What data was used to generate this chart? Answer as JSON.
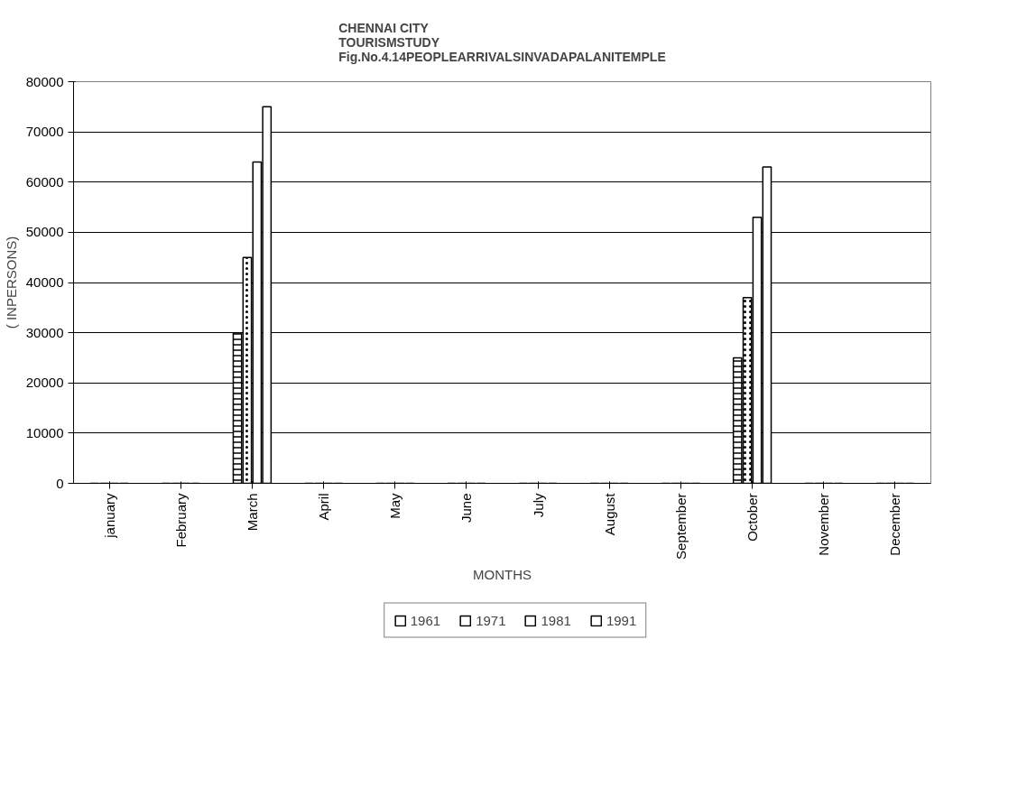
{
  "chart_data": {
    "type": "bar",
    "title": "CHENNAI CITY\nTOURISMSTUDY\nFig.No.4.14PEOPLEARRIVALSINVADAPALANITEMPLE",
    "xlabel": "MONTHS",
    "ylabel": "( INPERSONS)",
    "categories": [
      "january",
      "February",
      "March",
      "April",
      "May",
      "June",
      "July",
      "August",
      "September",
      "October",
      "November",
      "December"
    ],
    "series": [
      {
        "name": "1961",
        "color": "#000000",
        "values": [
          0,
          0,
          30000,
          0,
          0,
          0,
          0,
          0,
          0,
          25000,
          0,
          0
        ]
      },
      {
        "name": "1971",
        "color": "#000000",
        "values": [
          0,
          0,
          45000,
          0,
          0,
          0,
          0,
          0,
          0,
          37000,
          0,
          0
        ]
      },
      {
        "name": "1981",
        "color": "#000000",
        "values": [
          0,
          0,
          64000,
          0,
          0,
          0,
          0,
          0,
          0,
          53000,
          0,
          0
        ]
      },
      {
        "name": "1991",
        "color": "#000000",
        "values": [
          0,
          0,
          75000,
          0,
          0,
          0,
          0,
          0,
          0,
          63000,
          0,
          0
        ]
      }
    ],
    "ylim": [
      0,
      80000
    ],
    "yticks": [
      0,
      10000,
      20000,
      30000,
      40000,
      50000,
      60000,
      70000,
      80000
    ],
    "grid": "y",
    "legend": "bottom"
  }
}
